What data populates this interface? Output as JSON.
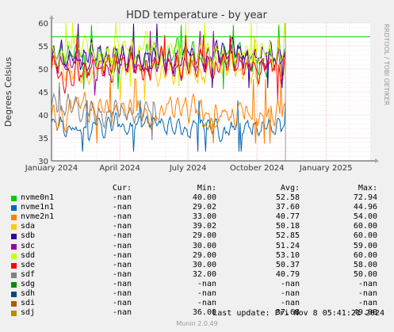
{
  "chart_data": {
    "type": "line",
    "title": "HDD temperature - by year",
    "ylabel": "Degrees Celsius",
    "ylim": [
      30,
      60
    ],
    "yticks": [
      30,
      35,
      40,
      45,
      50,
      55,
      60
    ],
    "xlim": [
      "2024-01-01",
      "2025-03-01"
    ],
    "xticks": [
      {
        "label": "January 2024",
        "date": "2024-01-01"
      },
      {
        "label": "April 2024",
        "date": "2024-04-01"
      },
      {
        "label": "July 2024",
        "date": "2024-07-01"
      },
      {
        "label": "October 2024",
        "date": "2024-10-01"
      },
      {
        "label": "January 2025",
        "date": "2025-01-01"
      }
    ],
    "grid": true,
    "watermark": "RRDTOOL / TOBI OETIKER",
    "threshold_line": {
      "value": 57,
      "color": "#00cc00"
    },
    "now_line": {
      "date": "2024-11-08",
      "color": "#999999"
    },
    "series": [
      {
        "name": "nvme0n1",
        "color": "#00cc00",
        "range": [
          40.0,
          72.94
        ],
        "avg": 52.58,
        "start": "2024-01-01",
        "end": "2024-11-08"
      },
      {
        "name": "nvme1n1",
        "color": "#0066b3",
        "range": [
          29.02,
          44.96
        ],
        "avg": 37.6,
        "start": "2024-01-01",
        "end": "2024-11-08"
      },
      {
        "name": "nvme2n1",
        "color": "#ff8000",
        "range": [
          33.0,
          54.0
        ],
        "avg": 40.77,
        "start": "2024-01-01",
        "end": "2024-11-08"
      },
      {
        "name": "sda",
        "color": "#ffcc00",
        "range": [
          39.02,
          60.0
        ],
        "avg": 50.18,
        "start": "2024-01-01",
        "end": "2024-11-08"
      },
      {
        "name": "sdb",
        "color": "#330099",
        "range": [
          29.0,
          60.0
        ],
        "avg": 52.85,
        "start": "2024-01-01",
        "end": "2024-11-08"
      },
      {
        "name": "sdc",
        "color": "#990099",
        "range": [
          30.0,
          59.0
        ],
        "avg": 51.24,
        "start": "2024-01-01",
        "end": "2024-11-08"
      },
      {
        "name": "sdd",
        "color": "#ccff00",
        "range": [
          29.0,
          60.0
        ],
        "avg": 53.1,
        "start": "2024-01-01",
        "end": "2024-11-08"
      },
      {
        "name": "sde",
        "color": "#ff0000",
        "range": [
          30.0,
          58.0
        ],
        "avg": 50.37,
        "start": "2024-01-01",
        "end": "2024-11-08"
      },
      {
        "name": "sdf",
        "color": "#808080",
        "range": [
          32.0,
          50.0
        ],
        "avg": 40.79,
        "start": "2024-01-01",
        "end": "2024-05-20"
      },
      {
        "name": "sdg",
        "color": "#008f00",
        "range": null,
        "avg": null
      },
      {
        "name": "sdh",
        "color": "#00487d",
        "range": null,
        "avg": null
      },
      {
        "name": "sdi",
        "color": "#b35a00",
        "range": null,
        "avg": null
      },
      {
        "name": "sdj",
        "color": "#b38f00",
        "range": [
          36.0,
          49.0
        ],
        "avg": 37.68,
        "start": "2024-07-20",
        "end": "2024-08-10"
      }
    ]
  },
  "legend": {
    "headers": {
      "cur": "Cur:",
      "min": "Min:",
      "avg": "Avg:",
      "max": "Max:"
    },
    "rows": [
      {
        "name": "nvme0n1",
        "color": "#00cc00",
        "cur": "-nan",
        "min": "40.00",
        "avg": "52.58",
        "max": "72.94"
      },
      {
        "name": "nvme1n1",
        "color": "#0066b3",
        "cur": "-nan",
        "min": "29.02",
        "avg": "37.60",
        "max": "44.96"
      },
      {
        "name": "nvme2n1",
        "color": "#ff8000",
        "cur": "-nan",
        "min": "33.00",
        "avg": "40.77",
        "max": "54.00"
      },
      {
        "name": "sda",
        "color": "#ffcc00",
        "cur": "-nan",
        "min": "39.02",
        "avg": "50.18",
        "max": "60.00"
      },
      {
        "name": "sdb",
        "color": "#330099",
        "cur": "-nan",
        "min": "29.00",
        "avg": "52.85",
        "max": "60.00"
      },
      {
        "name": "sdc",
        "color": "#990099",
        "cur": "-nan",
        "min": "30.00",
        "avg": "51.24",
        "max": "59.00"
      },
      {
        "name": "sdd",
        "color": "#ccff00",
        "cur": "-nan",
        "min": "29.00",
        "avg": "53.10",
        "max": "60.00"
      },
      {
        "name": "sde",
        "color": "#ff0000",
        "cur": "-nan",
        "min": "30.00",
        "avg": "50.37",
        "max": "58.00"
      },
      {
        "name": "sdf",
        "color": "#808080",
        "cur": "-nan",
        "min": "32.00",
        "avg": "40.79",
        "max": "50.00"
      },
      {
        "name": "sdg",
        "color": "#008f00",
        "cur": "-nan",
        "min": "-nan",
        "avg": "-nan",
        "max": "-nan"
      },
      {
        "name": "sdh",
        "color": "#00487d",
        "cur": "-nan",
        "min": "-nan",
        "avg": "-nan",
        "max": "-nan"
      },
      {
        "name": "sdi",
        "color": "#b35a00",
        "cur": "-nan",
        "min": "-nan",
        "avg": "-nan",
        "max": "-nan"
      },
      {
        "name": "sdj",
        "color": "#b38f00",
        "cur": "-nan",
        "min": "36.00",
        "avg": "37.68",
        "max": "49.00"
      }
    ]
  },
  "last_update": "Last update: Fri Nov  8 05:41:21 2024",
  "generator": "Munin 2.0.49"
}
